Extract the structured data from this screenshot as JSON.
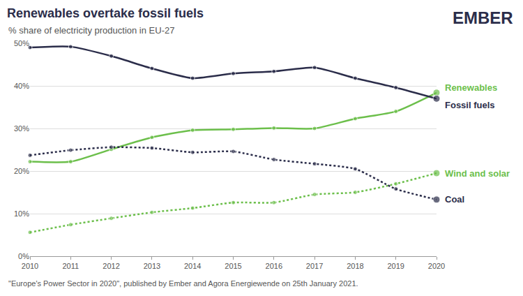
{
  "chart_data": {
    "type": "line",
    "title": "Renewables overtake fossil fuels",
    "subtitle": "% share of electricity production in EU-27",
    "logo": "EMBER",
    "source": "\"Europe's Power Sector in 2020\", published by Ember and Agora Energiewende on 25th January 2021.",
    "x": [
      2010,
      2011,
      2012,
      2013,
      2014,
      2015,
      2016,
      2017,
      2018,
      2019,
      2020
    ],
    "series": [
      {
        "name": "Renewables",
        "color": "#6cbf4b",
        "line_style": "solid",
        "marker": "circle",
        "values": [
          22.2,
          22.2,
          25.1,
          27.9,
          29.6,
          29.8,
          30.1,
          30.0,
          32.3,
          34.0,
          38.4
        ]
      },
      {
        "name": "Fossil fuels",
        "color": "#2b2d4a",
        "line_style": "solid",
        "marker": "circle",
        "values": [
          49.0,
          49.2,
          47.0,
          44.1,
          41.8,
          42.9,
          43.4,
          44.3,
          41.8,
          39.6,
          37.0
        ]
      },
      {
        "name": "Wind and solar",
        "color": "#6cbf4b",
        "line_style": "dotted",
        "marker": "circle",
        "values": [
          5.6,
          7.4,
          8.9,
          10.3,
          11.3,
          12.6,
          12.6,
          14.5,
          15.0,
          17.0,
          19.5
        ]
      },
      {
        "name": "Coal",
        "color": "#2b2d4a",
        "line_style": "dotted",
        "marker": "circle",
        "values": [
          23.7,
          24.9,
          25.6,
          25.4,
          24.4,
          24.6,
          22.7,
          21.7,
          20.5,
          15.8,
          13.3
        ]
      }
    ],
    "xlim": [
      2010,
      2020
    ],
    "xticks": [
      2010,
      2011,
      2012,
      2013,
      2014,
      2015,
      2016,
      2017,
      2018,
      2019,
      2020
    ],
    "ylim": [
      0,
      50
    ],
    "yticks": [
      {
        "value": 0,
        "label": "0%"
      },
      {
        "value": 10,
        "label": "10%"
      },
      {
        "value": 20,
        "label": "20%"
      },
      {
        "value": 30,
        "label": "30%"
      },
      {
        "value": 40,
        "label": "40%"
      },
      {
        "value": 50,
        "label": "50%"
      }
    ],
    "grid": true
  }
}
